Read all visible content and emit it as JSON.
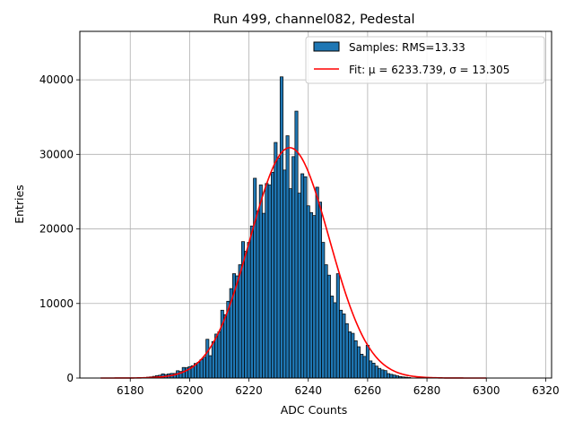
{
  "chart_data": {
    "type": "bar",
    "title": "Run 499, channel082, Pedestal",
    "xlabel": "ADC Counts",
    "ylabel": "Entries",
    "xlim": [
      6163,
      6322
    ],
    "ylim": [
      0,
      46500
    ],
    "xticks": [
      6180,
      6200,
      6220,
      6240,
      6260,
      6280,
      6300,
      6320
    ],
    "yticks": [
      0,
      10000,
      20000,
      30000,
      40000
    ],
    "grid": true,
    "legend_position": "top-right",
    "bin_width": 1,
    "colors": {
      "bars": "#1f77b4",
      "bar_edge": "#000000",
      "fit": "#ff0000",
      "grid": "#b0b0b0"
    },
    "series": [
      {
        "name": "Samples: RMS=13.33",
        "type": "bar",
        "bins": [
          [
            6185,
            80
          ],
          [
            6186,
            120
          ],
          [
            6187,
            160
          ],
          [
            6188,
            230
          ],
          [
            6189,
            320
          ],
          [
            6190,
            380
          ],
          [
            6191,
            560
          ],
          [
            6192,
            470
          ],
          [
            6193,
            560
          ],
          [
            6194,
            620
          ],
          [
            6195,
            620
          ],
          [
            6196,
            980
          ],
          [
            6197,
            880
          ],
          [
            6198,
            1420
          ],
          [
            6199,
            1380
          ],
          [
            6200,
            1520
          ],
          [
            6201,
            1660
          ],
          [
            6202,
            1960
          ],
          [
            6203,
            2100
          ],
          [
            6204,
            2480
          ],
          [
            6205,
            2800
          ],
          [
            6206,
            5200
          ],
          [
            6207,
            3000
          ],
          [
            6208,
            4900
          ],
          [
            6209,
            5900
          ],
          [
            6210,
            6200
          ],
          [
            6211,
            9100
          ],
          [
            6212,
            8500
          ],
          [
            6213,
            10300
          ],
          [
            6214,
            12000
          ],
          [
            6215,
            14000
          ],
          [
            6216,
            13700
          ],
          [
            6217,
            15200
          ],
          [
            6218,
            18300
          ],
          [
            6219,
            17000
          ],
          [
            6220,
            18200
          ],
          [
            6221,
            20400
          ],
          [
            6222,
            26800
          ],
          [
            6223,
            22400
          ],
          [
            6224,
            25900
          ],
          [
            6225,
            22100
          ],
          [
            6226,
            26100
          ],
          [
            6227,
            25900
          ],
          [
            6228,
            27600
          ],
          [
            6229,
            31600
          ],
          [
            6230,
            29500
          ],
          [
            6231,
            40400
          ],
          [
            6232,
            27900
          ],
          [
            6233,
            32500
          ],
          [
            6234,
            25400
          ],
          [
            6235,
            29700
          ],
          [
            6236,
            35800
          ],
          [
            6237,
            24800
          ],
          [
            6238,
            27400
          ],
          [
            6239,
            27000
          ],
          [
            6240,
            23100
          ],
          [
            6241,
            22200
          ],
          [
            6242,
            21800
          ],
          [
            6243,
            25600
          ],
          [
            6244,
            23600
          ],
          [
            6245,
            18200
          ],
          [
            6246,
            15200
          ],
          [
            6247,
            13800
          ],
          [
            6248,
            11000
          ],
          [
            6249,
            10100
          ],
          [
            6250,
            14000
          ],
          [
            6251,
            9100
          ],
          [
            6252,
            8600
          ],
          [
            6253,
            7300
          ],
          [
            6254,
            6200
          ],
          [
            6255,
            6000
          ],
          [
            6256,
            5000
          ],
          [
            6257,
            4200
          ],
          [
            6258,
            3200
          ],
          [
            6259,
            2900
          ],
          [
            6260,
            4400
          ],
          [
            6261,
            2300
          ],
          [
            6262,
            2000
          ],
          [
            6263,
            1600
          ],
          [
            6264,
            1300
          ],
          [
            6265,
            1100
          ],
          [
            6266,
            1000
          ],
          [
            6267,
            600
          ],
          [
            6268,
            500
          ],
          [
            6269,
            400
          ],
          [
            6270,
            300
          ],
          [
            6271,
            200
          ],
          [
            6272,
            150
          ],
          [
            6273,
            110
          ],
          [
            6274,
            70
          ]
        ]
      },
      {
        "name": "Fit: μ = 6233.739, σ = 13.305",
        "type": "line",
        "mu": 6233.739,
        "sigma": 13.305,
        "amplitude": 30900,
        "x_range": [
          6170,
          6300
        ]
      }
    ]
  }
}
